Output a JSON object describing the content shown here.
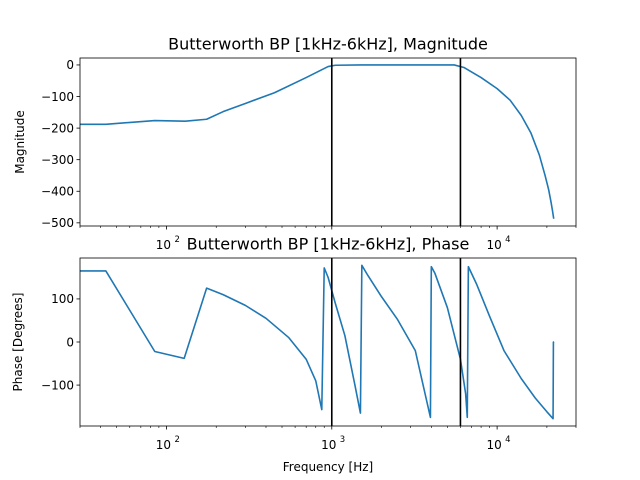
{
  "chart_data": [
    {
      "type": "line",
      "title": "Butterworth BP [1kHz-6kHz], Magnitude",
      "xlabel": "",
      "ylabel": "Magnitude",
      "xscale": "log",
      "xlim": [
        30,
        30000
      ],
      "ylim": [
        -510,
        22
      ],
      "yticks": [
        0,
        -100,
        -200,
        -300,
        -400,
        -500
      ],
      "xticks": [
        100,
        10000
      ],
      "xtick_labels": [
        {
          "base": "10",
          "exp": "2"
        },
        {
          "base": "10",
          "exp": "4"
        }
      ],
      "grid": false,
      "color": "#1f77b4",
      "vlines": [
        1000,
        6000
      ],
      "vline_color": "#000000",
      "series": [
        {
          "x": [
            30,
            43,
            85,
            130,
            175,
            220,
            300,
            450,
            700,
            950,
            1050,
            1500,
            3000,
            5500,
            6300,
            7000,
            8000,
            10000,
            12000,
            14000,
            16000,
            18000,
            19500,
            20500,
            21200,
            21600,
            22000
          ],
          "y": [
            -188,
            -188,
            -176,
            -178,
            -172,
            -148,
            -122,
            -88,
            -40,
            -5,
            -1,
            0,
            0,
            0,
            -8,
            -22,
            -40,
            -75,
            -112,
            -160,
            -215,
            -285,
            -350,
            -395,
            -435,
            -460,
            -487
          ]
        }
      ]
    },
    {
      "type": "line",
      "title": "Butterworth BP [1kHz-6kHz], Phase",
      "xlabel": "Frequency [Hz]",
      "ylabel": "Phase [Degrees]",
      "xscale": "log",
      "xlim": [
        30,
        30000
      ],
      "ylim": [
        -195,
        195
      ],
      "yticks": [
        100,
        0,
        -100
      ],
      "xticks": [
        100,
        1000,
        10000
      ],
      "xtick_labels": [
        {
          "base": "10",
          "exp": "2"
        },
        {
          "base": "10",
          "exp": "3"
        },
        {
          "base": "10",
          "exp": "4"
        }
      ],
      "grid": false,
      "color": "#1f77b4",
      "vlines": [
        1000,
        6000
      ],
      "vline_color": "#000000",
      "series": [
        {
          "x": [
            30,
            43,
            85,
            128,
            175,
            220,
            300,
            400,
            550,
            700,
            800,
            870,
            900,
            950,
            1050,
            1200,
            1380,
            1490,
            1520,
            1650,
            2000,
            2500,
            3200,
            3950,
            4000,
            4200,
            5000,
            6000,
            6450,
            6600,
            6700,
            7500,
            9000,
            11000,
            14000,
            17000,
            20000,
            21800,
            21900,
            21950
          ],
          "y": [
            165,
            165,
            -22,
            -38,
            125,
            110,
            85,
            55,
            10,
            -40,
            -90,
            -157,
            172,
            150,
            90,
            15,
            -100,
            -165,
            178,
            155,
            105,
            52,
            -20,
            -175,
            175,
            160,
            80,
            -40,
            -120,
            -175,
            175,
            135,
            60,
            -20,
            -85,
            -130,
            -162,
            -178,
            0,
            -3
          ]
        }
      ]
    }
  ]
}
